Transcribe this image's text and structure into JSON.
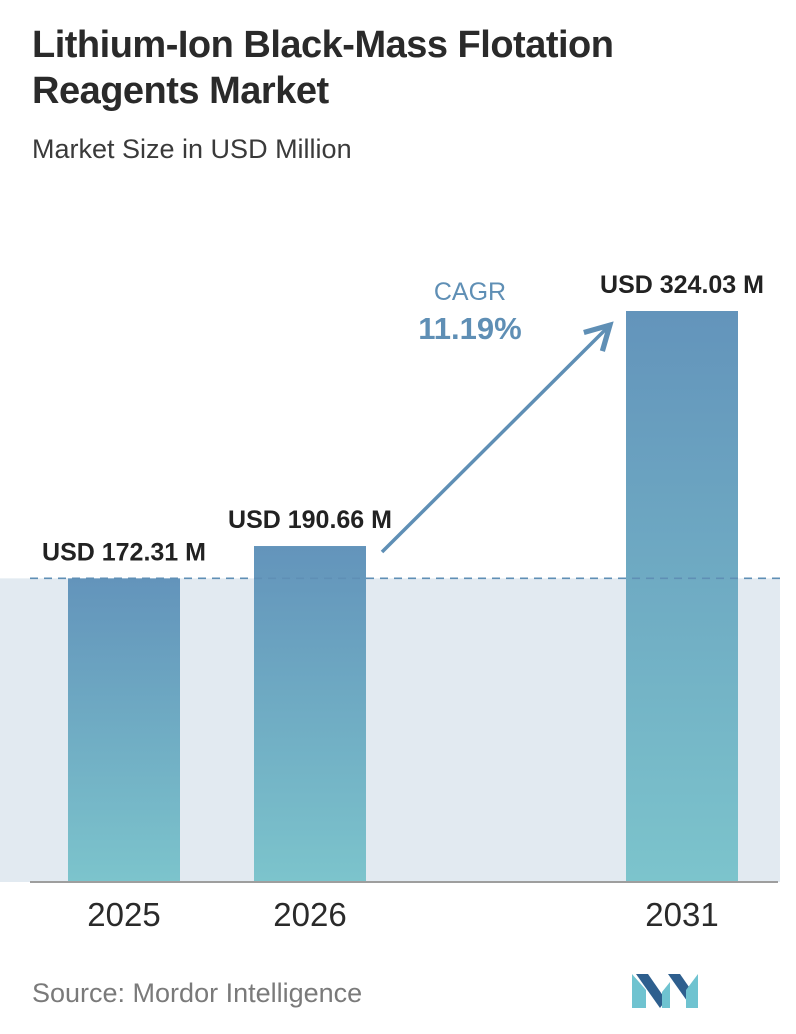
{
  "header": {
    "title": "Lithium-Ion Black-Mass Flotation Reagents Market",
    "subtitle": "Market Size in USD Million"
  },
  "footer": {
    "source": "Source: Mordor Intelligence"
  },
  "logo": {
    "icon": "mordor-intelligence-logo-icon"
  },
  "colors": {
    "bar_top": "#6394bb",
    "bar_bottom": "#7cc4cc",
    "band": "#e2eaf1",
    "accent": "#5f8fb5",
    "dashed_line": "#5f8fb5",
    "baseline": "#9e9e9e",
    "logo_light": "#6fc3d0",
    "logo_dark": "#2e5f8e"
  },
  "chart_data": {
    "type": "bar",
    "title": "Lithium-Ion Black-Mass Flotation Reagents Market",
    "subtitle": "Market Size in USD Million",
    "xlabel": "",
    "ylabel": "",
    "categories": [
      "2025",
      "2026",
      "2031"
    ],
    "values": [
      172.31,
      190.66,
      324.03
    ],
    "data_labels": [
      "USD 172.31 M",
      "USD 190.66 M",
      "USD 324.03 M"
    ],
    "ylim": [
      0,
      324.03
    ],
    "grid": false,
    "legend": "none",
    "reference_line": {
      "value": 172.31,
      "style": "dashed"
    },
    "annotation": {
      "label": "CAGR",
      "value": "11.19%",
      "from": "2026",
      "to": "2031"
    }
  }
}
